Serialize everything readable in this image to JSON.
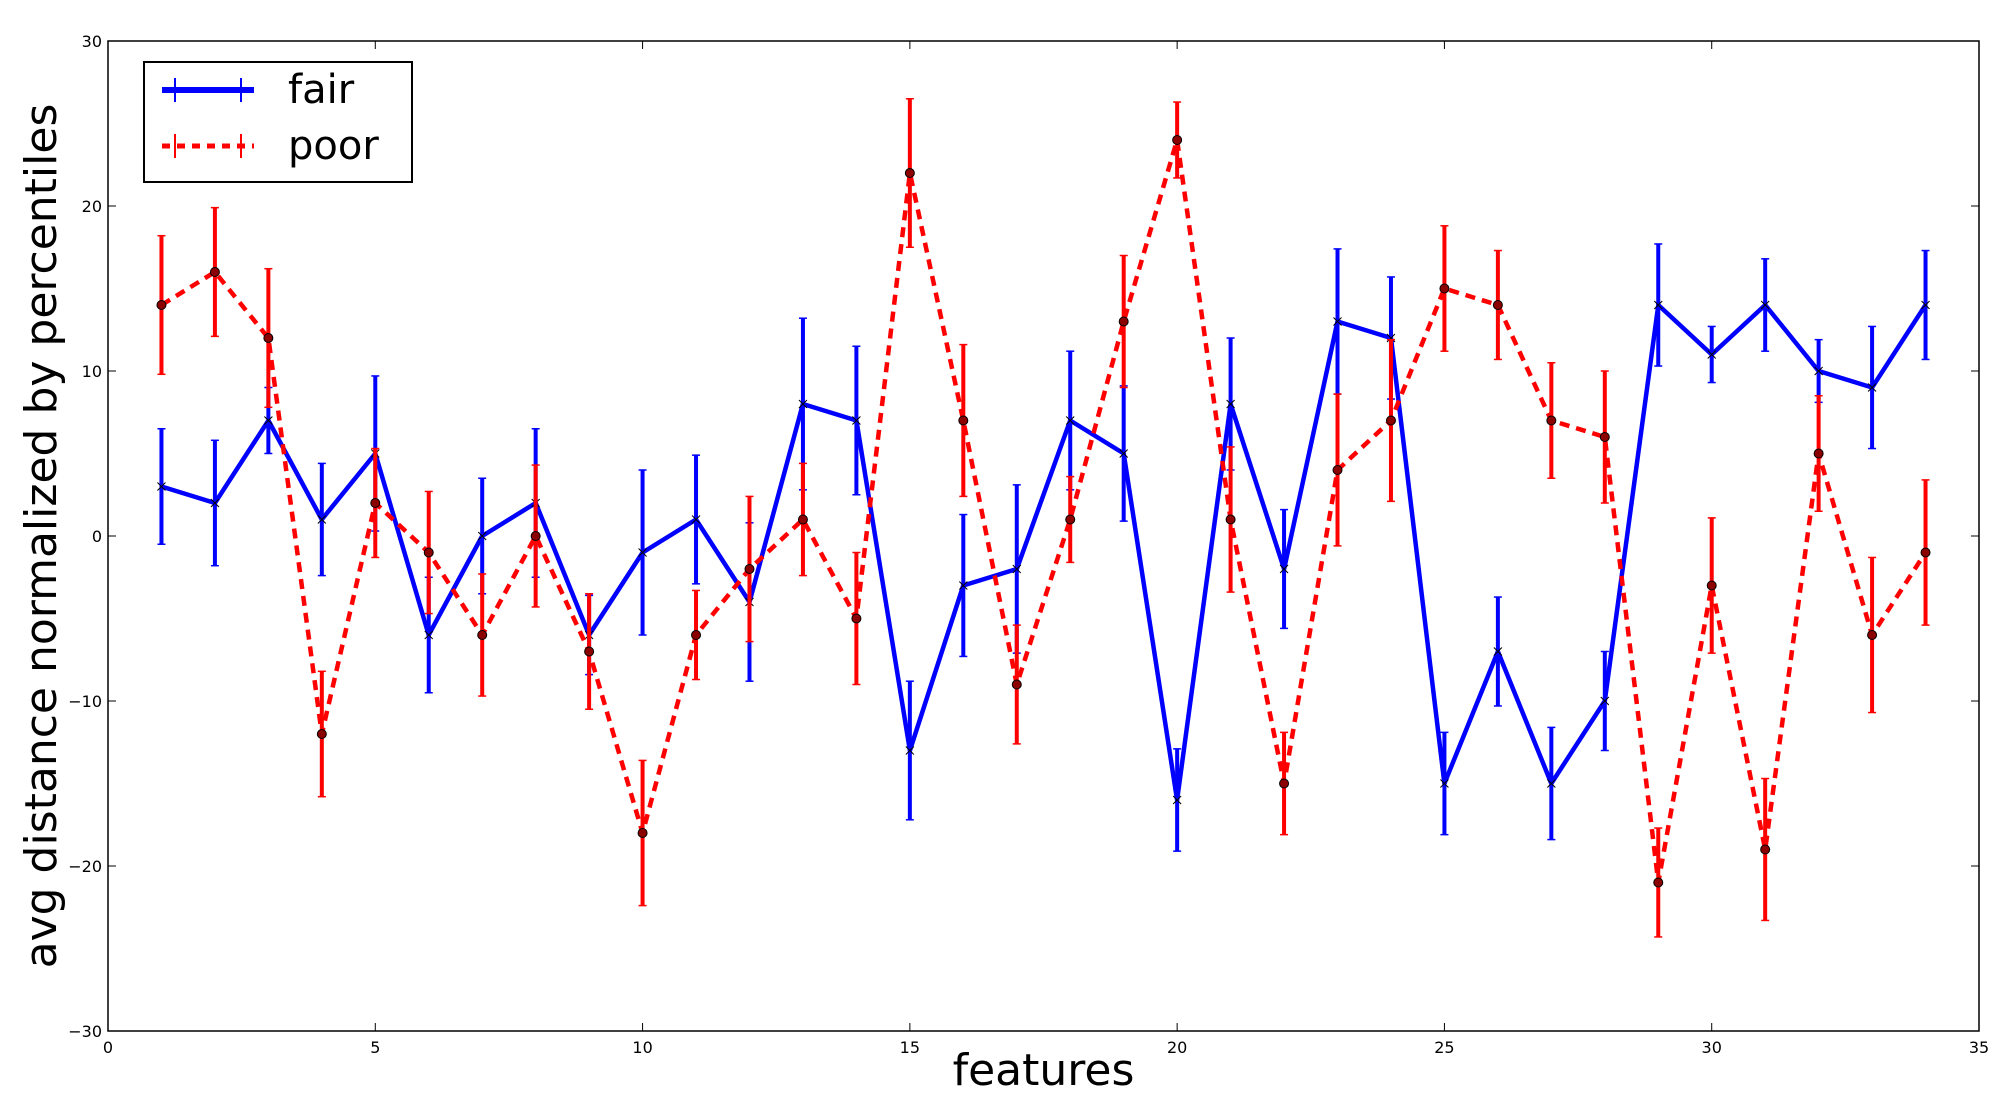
{
  "chart_data": {
    "type": "line",
    "title": "",
    "xlabel": "features",
    "ylabel": "avg distance normalized by percentiles",
    "xlim": [
      0,
      35
    ],
    "ylim": [
      -30,
      30
    ],
    "xticks": [
      0,
      5,
      10,
      15,
      20,
      25,
      30,
      35
    ],
    "yticks": [
      -30,
      -20,
      -10,
      0,
      10,
      20,
      30
    ],
    "xtick_labels": [
      "0",
      "5",
      "10",
      "15",
      "20",
      "25",
      "30",
      "35"
    ],
    "ytick_labels": [
      "−30",
      "−20",
      "−10",
      "0",
      "10",
      "20",
      "30"
    ],
    "grid": false,
    "legend_position": "top-left",
    "x": [
      1,
      2,
      3,
      4,
      5,
      6,
      7,
      8,
      9,
      10,
      11,
      12,
      13,
      14,
      15,
      16,
      17,
      18,
      19,
      20,
      21,
      22,
      23,
      24,
      25,
      26,
      27,
      28,
      29,
      30,
      31,
      32,
      33,
      34
    ],
    "series": [
      {
        "name": "fair",
        "color": "#0000ff",
        "line_style": "solid",
        "values": [
          3,
          2,
          7,
          1,
          5,
          -6,
          0,
          2,
          -6,
          -1,
          1,
          -4,
          8,
          7,
          -13,
          -3,
          -2,
          7,
          5,
          -16,
          8,
          -2,
          13,
          12,
          -15,
          -7,
          -15,
          -10,
          14,
          11,
          14,
          10,
          9,
          14
        ],
        "errors": [
          3.5,
          3.8,
          2.0,
          3.4,
          4.7,
          3.5,
          3.5,
          4.5,
          2.4,
          5.0,
          3.9,
          4.8,
          5.2,
          4.5,
          4.2,
          4.3,
          5.1,
          4.2,
          4.1,
          3.1,
          4.0,
          3.6,
          4.4,
          3.7,
          3.1,
          3.3,
          3.4,
          3.0,
          3.7,
          1.7,
          2.8,
          1.9,
          3.7,
          3.3
        ]
      },
      {
        "name": "poor",
        "color": "#ff0000",
        "line_style": "dashed",
        "values": [
          14,
          16,
          12,
          -12,
          2,
          -1,
          -6,
          0,
          -7,
          -18,
          -6,
          -2,
          1,
          -5,
          22,
          7,
          -9,
          1,
          13,
          24,
          1,
          -15,
          4,
          7,
          15,
          14,
          7,
          6,
          -21,
          -3,
          -19,
          5,
          -6,
          -1
        ],
        "errors": [
          4.2,
          3.9,
          4.2,
          3.8,
          3.3,
          3.7,
          3.7,
          4.3,
          3.5,
          4.4,
          2.7,
          4.4,
          3.4,
          4.0,
          4.5,
          4.6,
          3.6,
          2.6,
          4.0,
          2.3,
          4.4,
          3.1,
          4.6,
          4.9,
          3.8,
          3.3,
          3.5,
          4.0,
          3.3,
          4.1,
          4.3,
          3.5,
          4.7,
          4.4
        ]
      }
    ]
  }
}
